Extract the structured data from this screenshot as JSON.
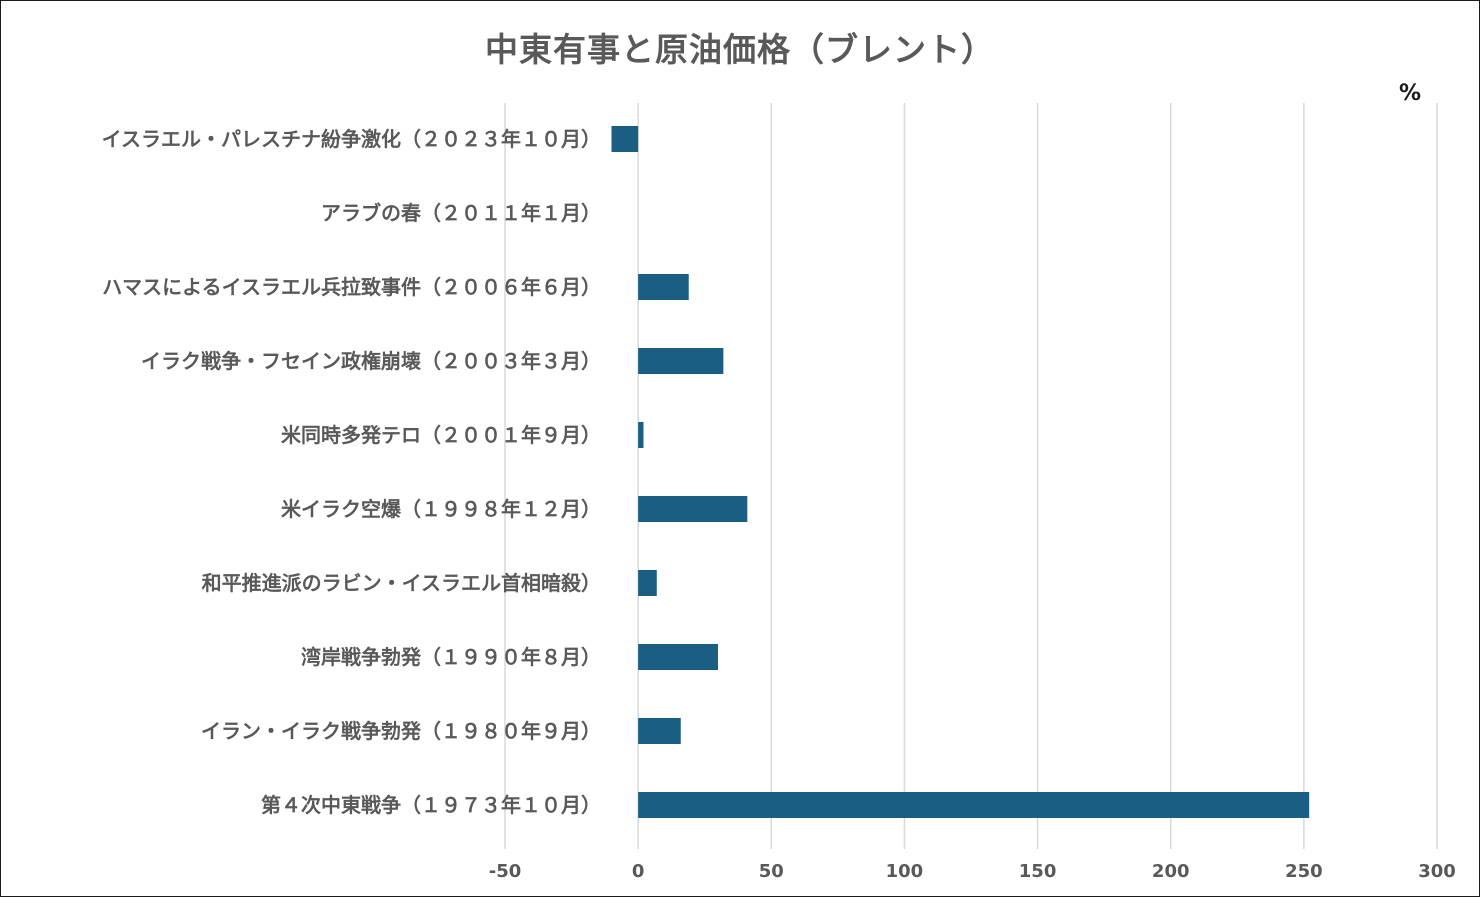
{
  "chart_data": {
    "type": "bar",
    "orientation": "horizontal",
    "title": "中東有事と原油価格（ブレント）",
    "unit": "%",
    "categories": [
      "イスラエル・パレスチナ紛争激化（２０２３年１０月）",
      "アラブの春（２０１１年１月）",
      "ハマスによるイスラエル兵拉致事件（２００６年６月）",
      "イラク戦争・フセイン政権崩壊（２００３年３月）",
      "米同時多発テロ（２００１年９月）",
      "米イラク空爆（１９９８年１２月）",
      "和平推進派のラビン・イスラエル首相暗殺）",
      "湾岸戦争勃発（１９９０年８月）",
      "イラン・イラク戦争勃発（１９８０年９月）",
      "第４次中東戦争（１９７３年１０月）"
    ],
    "values": [
      -10,
      0,
      19,
      32,
      2,
      41,
      7,
      30,
      16,
      252
    ],
    "xlim": [
      -50,
      300
    ],
    "xticks": [
      "-50",
      "0",
      "50",
      "100",
      "150",
      "200",
      "250",
      "300"
    ],
    "grid": true,
    "bar_color": "#1b5e84",
    "grid_color": "#d9d9d9",
    "text_color": "#595959"
  }
}
